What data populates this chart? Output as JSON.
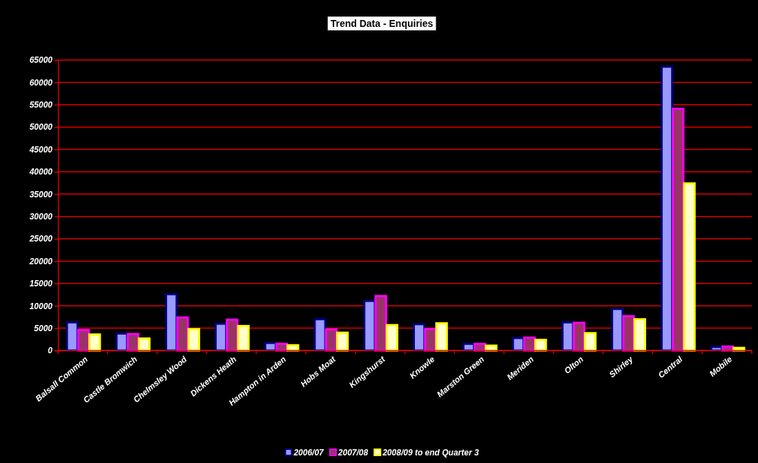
{
  "chart_data": {
    "type": "bar",
    "title": "Trend Data - Enquiries",
    "categories": [
      "Balsall Common",
      "Castle Bromwich",
      "Chelmsley Wood",
      "Dickens Heath",
      "Hampton in Arden",
      "Hobs Moat",
      "Kingshurst",
      "Knowle",
      "Marston Green",
      "Meriden",
      "Olton",
      "Shirley",
      "Central",
      "Mobile"
    ],
    "series": [
      {
        "name": "2006/07",
        "color": "#9999ff",
        "values": [
          6300,
          3800,
          12600,
          6000,
          1700,
          7000,
          11100,
          5900,
          1500,
          2800,
          6300,
          9300,
          63500,
          800
        ]
      },
      {
        "name": "2007/08",
        "color": "#993366",
        "values": [
          4600,
          3700,
          7400,
          6900,
          1500,
          4700,
          12200,
          4800,
          1500,
          2900,
          6200,
          7700,
          54100,
          900
        ]
      },
      {
        "name": "2008/09 to end Quarter 3",
        "color": "#ffffcc",
        "values": [
          3600,
          2700,
          4800,
          5500,
          1200,
          4000,
          5700,
          6100,
          1100,
          2400,
          3900,
          7000,
          37400,
          600
        ]
      }
    ],
    "ylim": [
      0,
      65000
    ],
    "yticks": [
      0,
      5000,
      10000,
      15000,
      20000,
      25000,
      30000,
      35000,
      40000,
      45000,
      50000,
      55000,
      60000,
      65000
    ],
    "grid": "y",
    "legend": "bottom"
  }
}
